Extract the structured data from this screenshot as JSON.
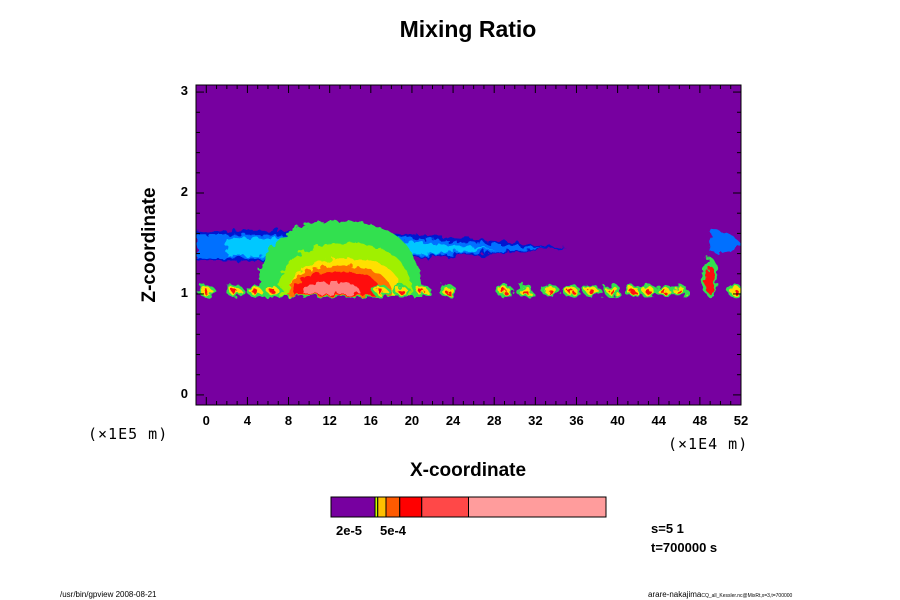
{
  "chart_data": {
    "type": "heatmap",
    "title": "Mixing Ratio",
    "xlabel": "X-coordinate",
    "ylabel": "Z-coordinate",
    "x_unit": "(×1E4 m)",
    "y_unit": "(×1E5 m)",
    "xlim": [
      -1,
      52
    ],
    "ylim": [
      -0.1,
      3.07
    ],
    "x_ticks": [
      "0",
      "4",
      "8",
      "12",
      "16",
      "20",
      "24",
      "28",
      "32",
      "36",
      "40",
      "44",
      "48",
      "52"
    ],
    "y_ticks": [
      "0",
      "1",
      "2",
      "3"
    ],
    "background_color": "#7700a0",
    "features": [
      {
        "kind": "anvil",
        "x": [
          -1,
          35
        ],
        "z": [
          1.33,
          1.62
        ],
        "color": "#0018d0"
      },
      {
        "kind": "anvil",
        "x": [
          -1,
          33
        ],
        "z": [
          1.36,
          1.58
        ],
        "color": "#0070ff"
      },
      {
        "kind": "anvil",
        "x": [
          2,
          28
        ],
        "z": [
          1.38,
          1.55
        ],
        "color": "#00c8ff"
      },
      {
        "kind": "dome",
        "x": [
          5,
          21
        ],
        "z": [
          0.97,
          1.72
        ],
        "color": "#30e050"
      },
      {
        "kind": "dome",
        "x": [
          7,
          20
        ],
        "z": [
          0.98,
          1.5
        ],
        "color": "#a0f000"
      },
      {
        "kind": "dome",
        "x": [
          8,
          19
        ],
        "z": [
          0.98,
          1.35
        ],
        "color": "#ffe000"
      },
      {
        "kind": "dome",
        "x": [
          8,
          18
        ],
        "z": [
          0.98,
          1.28
        ],
        "color": "#ff7000"
      },
      {
        "kind": "dome",
        "x": [
          8.5,
          17
        ],
        "z": [
          0.99,
          1.22
        ],
        "color": "#ff1010"
      },
      {
        "kind": "dome",
        "x": [
          9.5,
          15
        ],
        "z": [
          1.0,
          1.12
        ],
        "color": "#ff8080"
      },
      {
        "kind": "anvil",
        "x": [
          49,
          52
        ],
        "z": [
          1.42,
          1.62
        ],
        "color": "#0070ff"
      },
      {
        "kind": "column",
        "x": [
          48.2,
          49.8
        ],
        "z": [
          0.97,
          1.36
        ],
        "color": "#30e050"
      },
      {
        "kind": "column",
        "x": [
          48.5,
          49.5
        ],
        "z": [
          1.0,
          1.28
        ],
        "color": "#ff1010"
      }
    ],
    "cells": [
      0,
      2.8,
      4.8,
      6.5,
      17,
      19,
      21,
      23.5,
      29,
      31,
      33.5,
      35.5,
      37.5,
      39.5,
      41.5,
      43,
      44.5,
      46,
      51.5
    ],
    "colorbar": {
      "colors": [
        "#7700a0",
        "#c8ff00",
        "#ffc000",
        "#ff5a00",
        "#ff0000",
        "#ff4848",
        "#ff9c9c"
      ],
      "bounds": [
        0,
        0.16,
        0.17,
        0.2,
        0.25,
        0.33,
        0.5,
        1.0
      ],
      "labels": [
        "2e-5",
        "5e-4"
      ]
    }
  },
  "info": {
    "s": "s=5 1",
    "t": "t=700000 s"
  },
  "footer": {
    "left": "/usr/bin/gpview 2008-08-21",
    "right": "arare-nakajima",
    "right_small": "CQ_all_Kessler.nc@MixRt,x=3,t=700000"
  }
}
